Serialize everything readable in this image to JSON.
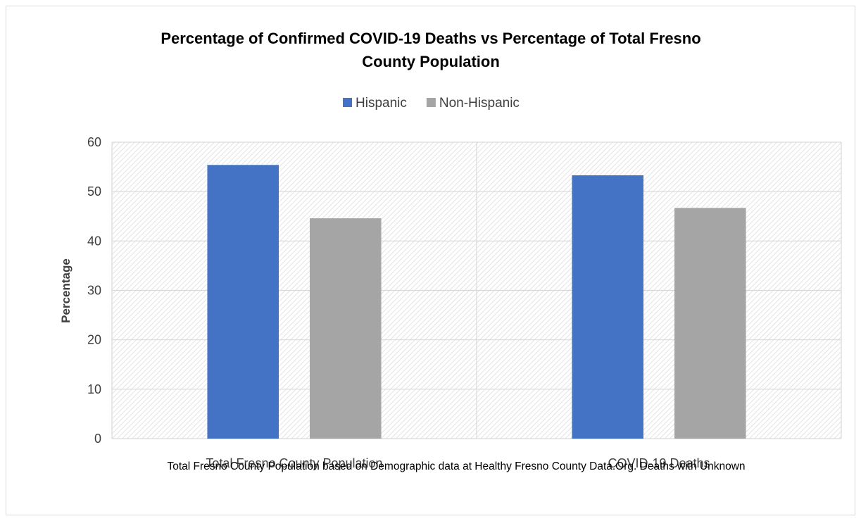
{
  "chart_data": {
    "type": "bar",
    "title_lines": [
      "Percentage of Confirmed COVID-19 Deaths vs Percentage of Total Fresno",
      "County Population"
    ],
    "categories": [
      "Total Fresno County Population",
      "COVID-19 Deaths"
    ],
    "series": [
      {
        "name": "Hispanic",
        "values": [
          55.4,
          53.3
        ],
        "color": "#4472c4"
      },
      {
        "name": "Non-Hispanic",
        "values": [
          44.6,
          46.7
        ],
        "color": "#a5a5a5"
      }
    ],
    "xlabel": "",
    "ylabel": "Percentage",
    "ylim": [
      0,
      60
    ],
    "yticks": [
      0,
      10,
      20,
      30,
      40,
      50,
      60
    ],
    "grid": true,
    "plot_background": "diagonal-hatch",
    "legend_position": "top-center",
    "note": "Total Fresno County Population based on Demographic data at Healthy Fresno County Data.Org. Deaths with Unknown"
  }
}
